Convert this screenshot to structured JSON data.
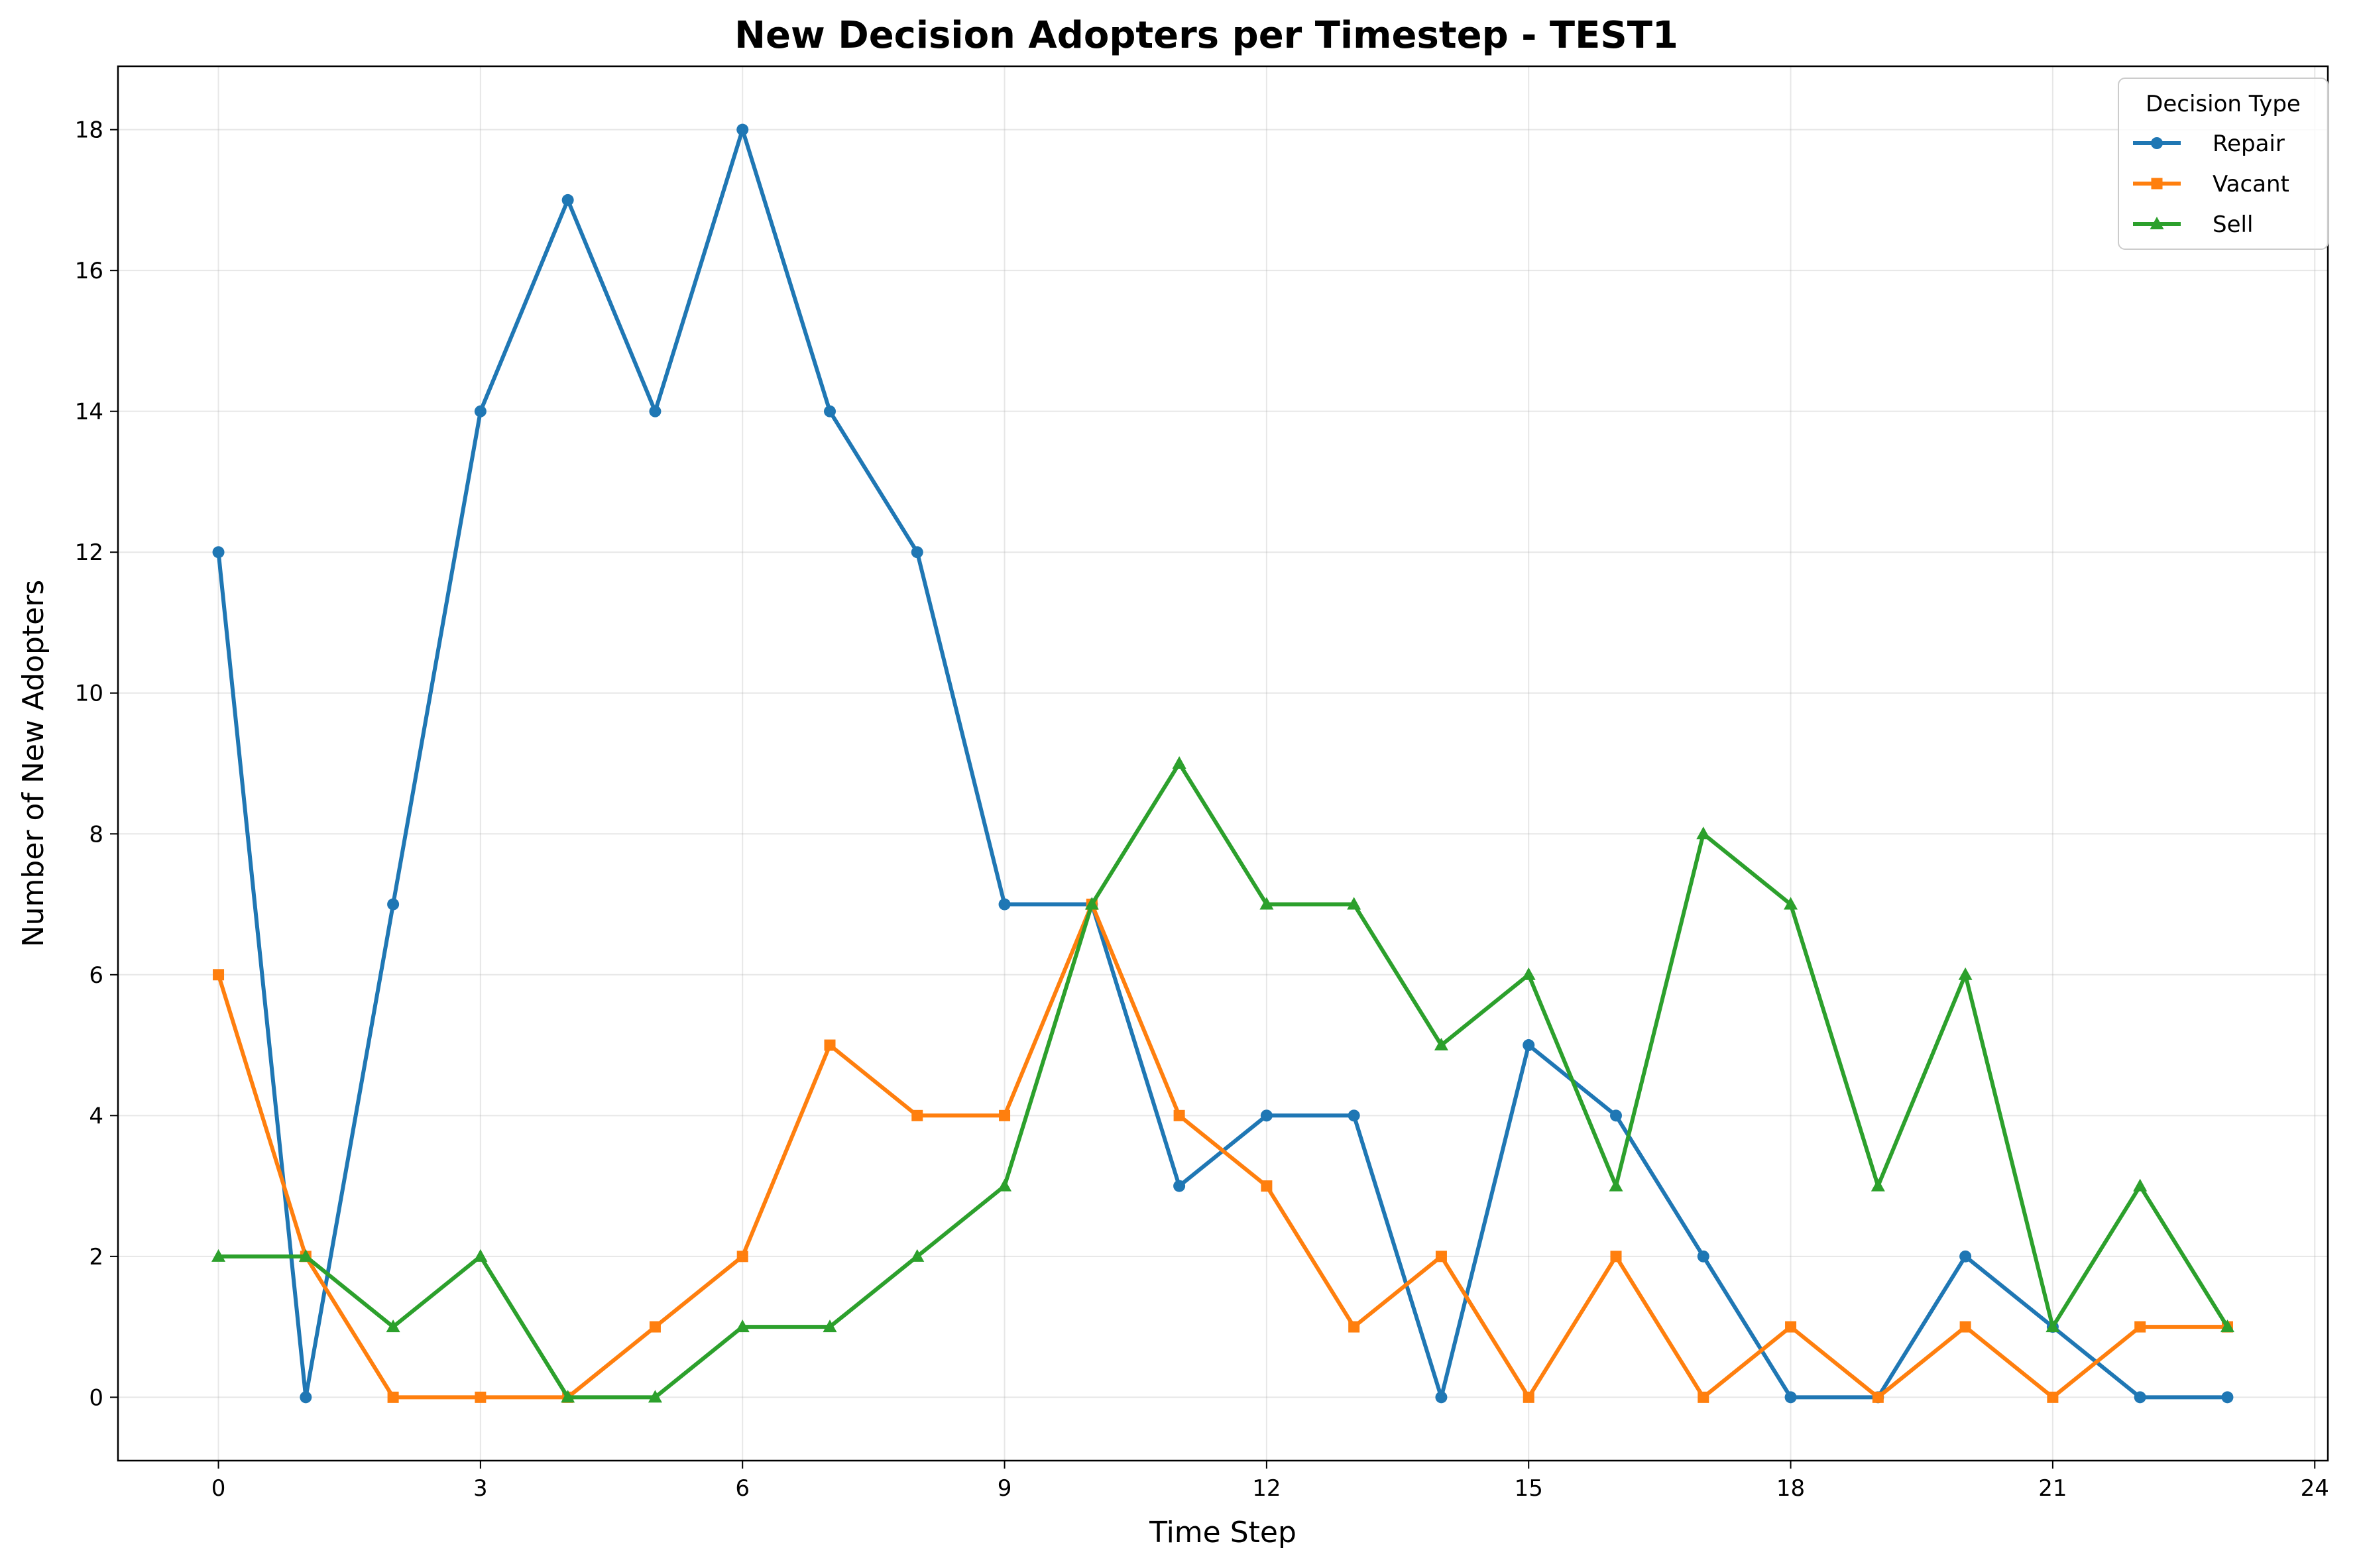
{
  "chart_data": {
    "type": "line",
    "title": "New Decision Adopters per Timestep - TEST1",
    "xlabel": "Time Step",
    "ylabel": "Number of New Adopters",
    "x": [
      0,
      1,
      2,
      3,
      4,
      5,
      6,
      7,
      8,
      9,
      10,
      11,
      12,
      13,
      14,
      15,
      16,
      17,
      18,
      19,
      20,
      21,
      22,
      23
    ],
    "xlim": [
      -1.15,
      24.15
    ],
    "ylim": [
      -0.9,
      18.9
    ],
    "xticks": [
      0,
      3,
      6,
      9,
      12,
      15,
      18,
      21,
      24
    ],
    "yticks": [
      0,
      2,
      4,
      6,
      8,
      10,
      12,
      14,
      16,
      18
    ],
    "grid": true,
    "legend": {
      "title": "Decision Type",
      "placement": "top-right"
    },
    "series": [
      {
        "name": "Repair",
        "color": "#1f77b4",
        "marker": "circle",
        "values": [
          12,
          0,
          7,
          14,
          17,
          14,
          18,
          14,
          12,
          7,
          7,
          3,
          4,
          4,
          0,
          5,
          4,
          2,
          0,
          0,
          2,
          1,
          0,
          0
        ]
      },
      {
        "name": "Vacant",
        "color": "#ff7f0e",
        "marker": "square",
        "values": [
          6,
          2,
          0,
          0,
          0,
          1,
          2,
          5,
          4,
          4,
          7,
          4,
          3,
          1,
          2,
          0,
          2,
          0,
          1,
          0,
          1,
          0,
          1,
          1
        ]
      },
      {
        "name": "Sell",
        "color": "#2ca02c",
        "marker": "triangle",
        "values": [
          2,
          2,
          1,
          2,
          0,
          0,
          1,
          1,
          2,
          3,
          7,
          9,
          7,
          7,
          5,
          6,
          3,
          8,
          7,
          3,
          6,
          1,
          3,
          1
        ]
      }
    ]
  }
}
